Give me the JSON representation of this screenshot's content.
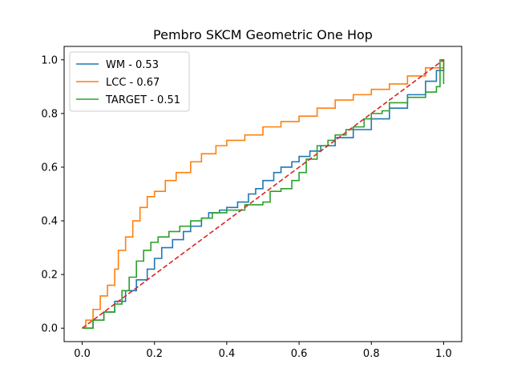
{
  "chart_data": {
    "type": "line",
    "title": "Pembro SKCM Geometric One Hop",
    "xlabel": "",
    "ylabel": "",
    "xlim": [
      -0.05,
      1.05
    ],
    "ylim": [
      -0.05,
      1.05
    ],
    "xticks": [
      "0.0",
      "0.2",
      "0.4",
      "0.6",
      "0.8",
      "1.0"
    ],
    "yticks": [
      "0.0",
      "0.2",
      "0.4",
      "0.6",
      "0.8",
      "1.0"
    ],
    "grid": false,
    "legend_position": "upper-left",
    "series": [
      {
        "name": "WM - 0.53",
        "color": "#1f77b4",
        "x": [
          0,
          0.03,
          0.06,
          0.09,
          0.12,
          0.15,
          0.18,
          0.2,
          0.22,
          0.25,
          0.28,
          0.3,
          0.33,
          0.35,
          0.38,
          0.4,
          0.43,
          0.46,
          0.48,
          0.5,
          0.53,
          0.55,
          0.58,
          0.6,
          0.63,
          0.66,
          0.7,
          0.75,
          0.8,
          0.85,
          0.9,
          0.95,
          0.98,
          1.0
        ],
        "y": [
          0,
          0.03,
          0.06,
          0.1,
          0.14,
          0.18,
          0.22,
          0.26,
          0.3,
          0.33,
          0.36,
          0.38,
          0.41,
          0.43,
          0.44,
          0.45,
          0.47,
          0.5,
          0.52,
          0.55,
          0.58,
          0.6,
          0.62,
          0.64,
          0.66,
          0.68,
          0.71,
          0.74,
          0.78,
          0.82,
          0.87,
          0.92,
          0.96,
          1.0
        ]
      },
      {
        "name": "LCC - 0.67",
        "color": "#ff7f0e",
        "x": [
          0,
          0.01,
          0.03,
          0.05,
          0.07,
          0.09,
          0.1,
          0.12,
          0.14,
          0.16,
          0.18,
          0.2,
          0.23,
          0.26,
          0.3,
          0.33,
          0.37,
          0.4,
          0.45,
          0.5,
          0.55,
          0.6,
          0.65,
          0.7,
          0.75,
          0.8,
          0.85,
          0.9,
          0.95,
          1.0
        ],
        "y": [
          0,
          0.03,
          0.07,
          0.12,
          0.16,
          0.22,
          0.29,
          0.34,
          0.4,
          0.45,
          0.49,
          0.51,
          0.55,
          0.58,
          0.62,
          0.65,
          0.68,
          0.7,
          0.72,
          0.75,
          0.77,
          0.79,
          0.82,
          0.85,
          0.87,
          0.89,
          0.91,
          0.94,
          0.97,
          1.0
        ]
      },
      {
        "name": "TARGET - 0.51",
        "color": "#2ca02c",
        "x": [
          0,
          0.03,
          0.06,
          0.09,
          0.11,
          0.13,
          0.15,
          0.17,
          0.19,
          0.21,
          0.24,
          0.27,
          0.3,
          0.33,
          0.36,
          0.4,
          0.45,
          0.5,
          0.52,
          0.55,
          0.58,
          0.6,
          0.62,
          0.65,
          0.68,
          0.7,
          0.73,
          0.75,
          0.78,
          0.8,
          0.83,
          0.85,
          0.9,
          0.95,
          0.98,
          0.99,
          0.99,
          1.0,
          1.0
        ],
        "y": [
          0,
          0.03,
          0.06,
          0.09,
          0.14,
          0.19,
          0.25,
          0.29,
          0.32,
          0.34,
          0.36,
          0.38,
          0.4,
          0.41,
          0.43,
          0.44,
          0.46,
          0.47,
          0.51,
          0.52,
          0.55,
          0.58,
          0.63,
          0.68,
          0.7,
          0.72,
          0.74,
          0.75,
          0.78,
          0.8,
          0.81,
          0.84,
          0.86,
          0.88,
          0.9,
          0.9,
          1.0,
          1.0,
          0.91
        ]
      },
      {
        "name": "",
        "color": "#d62728",
        "dashed": true,
        "x": [
          0,
          1
        ],
        "y": [
          0,
          1
        ]
      }
    ]
  }
}
